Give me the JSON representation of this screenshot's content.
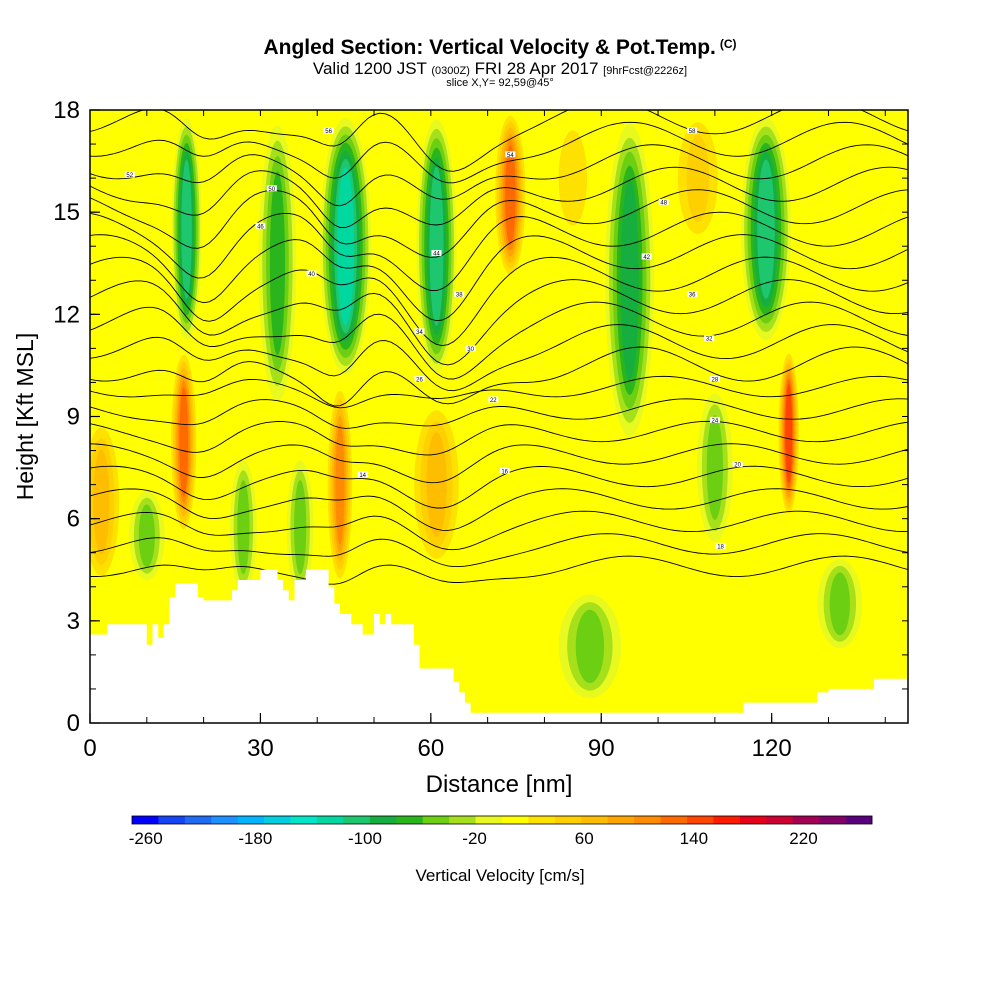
{
  "title": {
    "main": "Angled Section: Vertical Velocity & Pot.Temp.",
    "tag": "(C)",
    "valid_prefix": "Valid 1200 JST",
    "valid_utc": "(0300Z)",
    "valid_date": "FRI 28 Apr 2017",
    "forecast": "[9hrFcst@2226z]",
    "slice": "slice X,Y= 92,59@45°"
  },
  "chart_data": {
    "type": "heatmap",
    "xlabel": "Distance [nm]",
    "ylabel": "Height [Kft MSL]",
    "xlim": [
      0,
      144
    ],
    "ylim": [
      0,
      18
    ],
    "x_ticks": [
      0,
      30,
      60,
      90,
      120
    ],
    "y_ticks": [
      0,
      3,
      6,
      9,
      12,
      15,
      18
    ],
    "background_value": 20,
    "colorbar": {
      "label": "Vertical Velocity [cm/s]",
      "min": -270,
      "max": 270,
      "step": 20,
      "tick_labels": [
        "-260",
        "-180",
        "-100",
        "-20",
        "60",
        "140",
        "220"
      ],
      "colors": [
        "#0000ff",
        "#1544f5",
        "#1f6cf2",
        "#1e90ff",
        "#00b4ff",
        "#00cfe0",
        "#00e6c6",
        "#00d8a0",
        "#1ec76e",
        "#16ae3e",
        "#2ab51d",
        "#6ccf12",
        "#a6e01a",
        "#e8f91f",
        "#ffff00",
        "#ffe100",
        "#ffd000",
        "#ffbd00",
        "#ffa500",
        "#ff8c00",
        "#ff6a00",
        "#ff4500",
        "#ff1a00",
        "#e6001a",
        "#cc0033",
        "#a30055",
        "#820068",
        "#5a007d"
      ]
    },
    "updraft_columns": [
      {
        "x": 16.5,
        "y0": 5.5,
        "y1": 11,
        "w": 2.5,
        "v": 130
      },
      {
        "x": 44,
        "y0": 4,
        "y1": 10,
        "w": 2.5,
        "v": 125
      },
      {
        "x": 74,
        "y0": 13,
        "y1": 18,
        "w": 3,
        "v": 130
      },
      {
        "x": 123,
        "y0": 6,
        "y1": 11,
        "w": 2,
        "v": 160
      },
      {
        "x": 61,
        "y0": 4.5,
        "y1": 9.5,
        "w": 5,
        "v": 75
      },
      {
        "x": 2,
        "y0": 4,
        "y1": 9,
        "w": 4,
        "v": 70
      },
      {
        "x": 107,
        "y0": 14,
        "y1": 18,
        "w": 5,
        "v": 55
      },
      {
        "x": 85,
        "y0": 14,
        "y1": 18,
        "w": 5,
        "v": 45
      }
    ],
    "downdraft_columns": [
      {
        "x": 17,
        "y0": 11,
        "y1": 18,
        "w": 3,
        "v": -90
      },
      {
        "x": 33,
        "y0": 9,
        "y1": 18,
        "w": 4,
        "v": -60
      },
      {
        "x": 45,
        "y0": 10,
        "y1": 18,
        "w": 5,
        "v": -110
      },
      {
        "x": 61,
        "y0": 10,
        "y1": 18,
        "w": 4,
        "v": -90
      },
      {
        "x": 95,
        "y0": 8,
        "y1": 18,
        "w": 5,
        "v": -80
      },
      {
        "x": 119,
        "y0": 11,
        "y1": 18,
        "w": 5,
        "v": -90
      },
      {
        "x": 10,
        "y0": 4,
        "y1": 7,
        "w": 4,
        "v": -45
      },
      {
        "x": 27,
        "y0": 3.5,
        "y1": 8,
        "w": 3,
        "v": -35
      },
      {
        "x": 37,
        "y0": 3.5,
        "y1": 8,
        "w": 3,
        "v": -35
      },
      {
        "x": 88,
        "y0": 0.5,
        "y1": 4,
        "w": 7,
        "v": -35
      },
      {
        "x": 132,
        "y0": 2,
        "y1": 5,
        "w": 5,
        "v": -40
      },
      {
        "x": 110,
        "y0": 5,
        "y1": 10,
        "w": 4,
        "v": -30
      }
    ],
    "terrain": [
      [
        0,
        2.6
      ],
      [
        3,
        2.9
      ],
      [
        8,
        2.9
      ],
      [
        10,
        2.3
      ],
      [
        11,
        2.9
      ],
      [
        12,
        2.5
      ],
      [
        13,
        2.9
      ],
      [
        14,
        3.7
      ],
      [
        15,
        4.1
      ],
      [
        18,
        4.1
      ],
      [
        19,
        3.7
      ],
      [
        20,
        3.6
      ],
      [
        24,
        3.6
      ],
      [
        25,
        3.9
      ],
      [
        26,
        4.2
      ],
      [
        29,
        4.2
      ],
      [
        30,
        4.5
      ],
      [
        32,
        4.5
      ],
      [
        33,
        4.2
      ],
      [
        34,
        3.9
      ],
      [
        35,
        3.6
      ],
      [
        36,
        4.2
      ],
      [
        37,
        4.2
      ],
      [
        38,
        4.5
      ],
      [
        41,
        4.5
      ],
      [
        42,
        4.0
      ],
      [
        43,
        3.5
      ],
      [
        44,
        3.2
      ],
      [
        45,
        3.2
      ],
      [
        46,
        2.9
      ],
      [
        48,
        2.6
      ],
      [
        50,
        3.2
      ],
      [
        51,
        2.9
      ],
      [
        52,
        3.2
      ],
      [
        53,
        2.9
      ],
      [
        56,
        2.9
      ],
      [
        57,
        2.3
      ],
      [
        58,
        1.6
      ],
      [
        63,
        1.6
      ],
      [
        64,
        1.2
      ],
      [
        65,
        0.9
      ],
      [
        66,
        0.6
      ],
      [
        67,
        0.3
      ],
      [
        76,
        0.3
      ],
      [
        78,
        0.3
      ],
      [
        99,
        0.3
      ],
      [
        102,
        0.3
      ],
      [
        114,
        0.3
      ],
      [
        115,
        0.6
      ],
      [
        119,
        0.6
      ],
      [
        121,
        0.6
      ],
      [
        124,
        0.6
      ],
      [
        125,
        0.6
      ],
      [
        128,
        0.9
      ],
      [
        130,
        1.0
      ],
      [
        137,
        1.0
      ],
      [
        138,
        1.3
      ],
      [
        144,
        1.3
      ]
    ],
    "isentropes": {
      "levels": [
        12,
        14,
        16,
        18,
        20,
        22,
        24,
        26,
        28,
        30,
        32,
        34,
        36,
        38,
        40,
        42,
        44,
        46,
        48,
        50,
        52
      ],
      "labels": [
        {
          "x": 48,
          "y": 7.3,
          "text": "14"
        },
        {
          "x": 73,
          "y": 7.4,
          "text": "16"
        },
        {
          "x": 111,
          "y": 5.2,
          "text": "18"
        },
        {
          "x": 114,
          "y": 7.6,
          "text": "20"
        },
        {
          "x": 71,
          "y": 9.5,
          "text": "22"
        },
        {
          "x": 110,
          "y": 8.9,
          "text": "24"
        },
        {
          "x": 58,
          "y": 10.1,
          "text": "26"
        },
        {
          "x": 110,
          "y": 10.1,
          "text": "28"
        },
        {
          "x": 67,
          "y": 11.0,
          "text": "30"
        },
        {
          "x": 109,
          "y": 11.3,
          "text": "32"
        },
        {
          "x": 58,
          "y": 11.5,
          "text": "34"
        },
        {
          "x": 106,
          "y": 12.6,
          "text": "36"
        },
        {
          "x": 65,
          "y": 12.6,
          "text": "38"
        },
        {
          "x": 39,
          "y": 13.2,
          "text": "40"
        },
        {
          "x": 98,
          "y": 13.7,
          "text": "42"
        },
        {
          "x": 61,
          "y": 13.8,
          "text": "44"
        },
        {
          "x": 30,
          "y": 14.6,
          "text": "46"
        },
        {
          "x": 101,
          "y": 15.3,
          "text": "48"
        },
        {
          "x": 32,
          "y": 15.7,
          "text": "50"
        },
        {
          "x": 7,
          "y": 16.1,
          "text": "52"
        },
        {
          "x": 74,
          "y": 16.7,
          "text": "54"
        },
        {
          "x": 42,
          "y": 17.4,
          "text": "56"
        },
        {
          "x": 106,
          "y": 17.4,
          "text": "58"
        }
      ]
    }
  }
}
